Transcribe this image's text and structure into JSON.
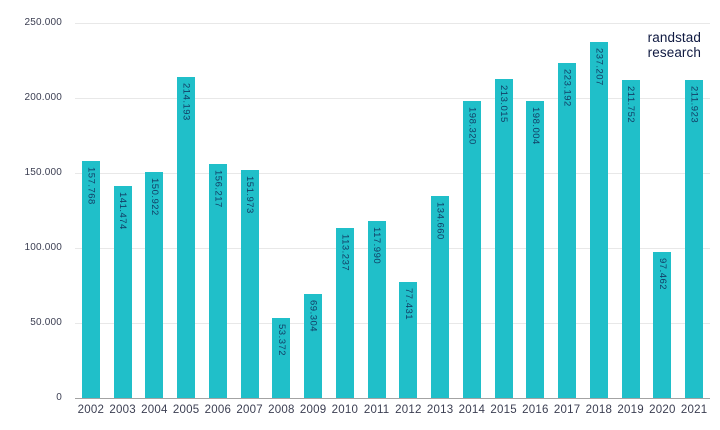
{
  "branding": {
    "line1": "randstad",
    "line2": "research"
  },
  "colors": {
    "background": "#ffffff",
    "bar": "#20bfc9",
    "bar_label": "#123e66",
    "axis_label": "#3b3e52",
    "grid": "#e8e8e8",
    "axis_line": "#a3a3a3",
    "brand_text": "#0f1941"
  },
  "chart_data": {
    "type": "bar",
    "title": "",
    "xlabel": "",
    "ylabel": "",
    "categories": [
      "2002",
      "2003",
      "2004",
      "2005",
      "2006",
      "2007",
      "2008",
      "2009",
      "2010",
      "2011",
      "2012",
      "2013",
      "2014",
      "2015",
      "2016",
      "2017",
      "2018",
      "2019",
      "2020",
      "2021"
    ],
    "values": [
      157768,
      141474,
      150922,
      214193,
      156217,
      151973,
      53372,
      69304,
      113237,
      117990,
      77431,
      134660,
      198320,
      213015,
      198004,
      223192,
      237207,
      211752,
      97462,
      211923
    ],
    "value_labels": [
      "157.768",
      "141.474",
      "150.922",
      "214.193",
      "156.217",
      "151.973",
      "53.372",
      "69.304",
      "113.237",
      "117.990",
      "77.431",
      "134.660",
      "198.320",
      "213.015",
      "198.004",
      "223.192",
      "237.207",
      "211.752",
      "97.462",
      "211.923"
    ],
    "ylim": [
      0,
      250000
    ],
    "y_tick_values": [
      0,
      50000,
      100000,
      150000,
      200000,
      250000
    ],
    "y_tick_labels": [
      "0",
      "50.000",
      "100.000",
      "150.000",
      "200.000",
      "250.000"
    ],
    "grid": "horizontal",
    "legend_position": "none",
    "bar_label_placement": "inside-top-vertical",
    "annotation": "randstad research"
  }
}
